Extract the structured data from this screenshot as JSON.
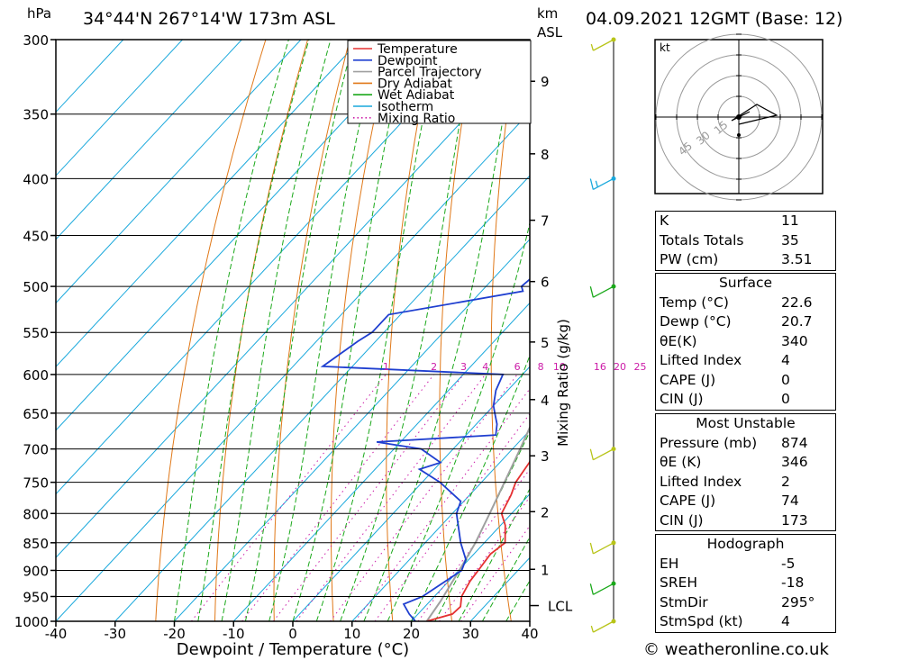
{
  "header": {
    "location": "34°44'N  267°14'W  173m  ASL",
    "datetime": "04.09.2021  12GMT  (Base: 12)",
    "pressure_unit": "hPa",
    "height_unit_km": "km",
    "height_unit_asl": "ASL"
  },
  "chart_data": {
    "type": "line",
    "title": "34°44'N  267°14'W  173m  ASL",
    "xlabel": "Dewpoint / Temperature (°C)",
    "ylabel": "hPa",
    "y2label": "Mixing Ratio (g/kg)",
    "xlim": [
      -40,
      40
    ],
    "ylim": [
      1000,
      300
    ],
    "pressure_ticks": [
      300,
      350,
      400,
      450,
      500,
      550,
      600,
      650,
      700,
      750,
      800,
      850,
      900,
      950,
      1000
    ],
    "temp_ticks": [
      -40,
      -30,
      -20,
      -10,
      0,
      10,
      20,
      30,
      40
    ],
    "height_ticks_km": [
      {
        "label": "9",
        "p": 327
      },
      {
        "label": "8",
        "p": 380
      },
      {
        "label": "7",
        "p": 436
      },
      {
        "label": "6",
        "p": 495
      },
      {
        "label": "5",
        "p": 561
      },
      {
        "label": "4",
        "p": 632
      },
      {
        "label": "3",
        "p": 710
      },
      {
        "label": "2",
        "p": 797
      },
      {
        "label": "1",
        "p": 898
      }
    ],
    "lcl": {
      "label": "LCL",
      "p": 968
    },
    "mixing_ratio_labels": [
      "1",
      "2",
      "3",
      "4",
      "6",
      "8",
      "10",
      "16",
      "20",
      "25"
    ],
    "mixing_ratio_values": [
      1,
      2,
      3,
      4,
      6,
      8,
      10,
      16,
      20,
      25
    ],
    "legend": [
      "Temperature",
      "Dewpoint",
      "Parcel Trajectory",
      "Dry Adiabat",
      "Wet Adiabat",
      "Isotherm",
      "Mixing Ratio"
    ],
    "legend_position": "top",
    "colors": {
      "temperature": "#e53030",
      "dewpoint": "#1f3fd0",
      "parcel": "#a0a0a0",
      "dry_adiabat": "#e07818",
      "wet_adiabat": "#1aa81a",
      "isotherm": "#19a8dc",
      "mixing_ratio": "#cc1ca8"
    },
    "series": [
      {
        "name": "Temperature",
        "points": [
          [
            1000,
            22.6
          ],
          [
            985,
            25.8
          ],
          [
            970,
            26
          ],
          [
            950,
            24.6
          ],
          [
            920,
            23.6
          ],
          [
            900,
            23.3
          ],
          [
            870,
            22.8
          ],
          [
            850,
            23.5
          ],
          [
            820,
            20.8
          ],
          [
            800,
            18.3
          ],
          [
            770,
            17.0
          ],
          [
            750,
            15.8
          ],
          [
            720,
            15.0
          ],
          [
            700,
            14.1
          ],
          [
            680,
            13.2
          ],
          [
            650,
            11.2
          ],
          [
            620,
            9.1
          ],
          [
            600,
            7.0
          ],
          [
            580,
            6.2
          ],
          [
            550,
            4.6
          ],
          [
            520,
            3.0
          ],
          [
            500,
            0.3
          ],
          [
            470,
            -4.5
          ],
          [
            450,
            -7.4
          ],
          [
            420,
            -12.3
          ],
          [
            400,
            -15.1
          ],
          [
            390,
            -14.6
          ],
          [
            370,
            -17.0
          ],
          [
            350,
            -20.9
          ],
          [
            320,
            -26
          ],
          [
            300,
            -29.5
          ]
        ]
      },
      {
        "name": "Dewpoint",
        "points": [
          [
            1000,
            20.7
          ],
          [
            985,
            18.5
          ],
          [
            965,
            16.0
          ],
          [
            950,
            18.0
          ],
          [
            900,
            20.5
          ],
          [
            880,
            19.5
          ],
          [
            850,
            16.0
          ],
          [
            800,
            10.7
          ],
          [
            780,
            9.5
          ],
          [
            750,
            3.0
          ],
          [
            730,
            -2.5
          ],
          [
            720,
            0.0
          ],
          [
            700,
            -5.4
          ],
          [
            690,
            -14.0
          ],
          [
            680,
            5.0
          ],
          [
            665,
            3.5
          ],
          [
            650,
            1.4
          ],
          [
            640,
            0.0
          ],
          [
            620,
            -2.0
          ],
          [
            600,
            -3.3
          ],
          [
            590,
            -35
          ],
          [
            560,
            -33
          ],
          [
            550,
            -32
          ],
          [
            530,
            -32
          ],
          [
            505,
            -13
          ],
          [
            500,
            -14
          ],
          [
            450,
            -12
          ],
          [
            420,
            -11
          ],
          [
            400,
            -10
          ],
          [
            380,
            -29
          ],
          [
            360,
            -16
          ],
          [
            355,
            -7
          ],
          [
            350,
            -25
          ],
          [
            340,
            -26
          ],
          [
            320,
            -23
          ],
          [
            300,
            -22
          ],
          [
            296,
            -20
          ]
        ]
      },
      {
        "name": "Parcel Trajectory",
        "points": [
          [
            1000,
            22.6
          ],
          [
            960,
            21.8
          ],
          [
            900,
            20.1
          ],
          [
            850,
            18.5
          ],
          [
            800,
            16.3
          ],
          [
            750,
            13.9
          ],
          [
            700,
            11.3
          ],
          [
            650,
            8.4
          ],
          [
            600,
            5.0
          ],
          [
            550,
            1.1
          ],
          [
            500,
            -3.5
          ],
          [
            450,
            -8.9
          ],
          [
            400,
            -15.3
          ],
          [
            350,
            -22.9
          ],
          [
            320,
            -27.6
          ]
        ]
      }
    ],
    "hodograph": {
      "unit": "kt",
      "ring_labels": [
        "15",
        "30",
        "45"
      ]
    },
    "wind_barbs": [
      {
        "p": 300,
        "speed_kt": 5,
        "color": "#b8c418"
      },
      {
        "p": 400,
        "speed_kt": 15,
        "color": "#19a8dc"
      },
      {
        "p": 500,
        "speed_kt": 10,
        "color": "#1aa81a"
      },
      {
        "p": 700,
        "speed_kt": 10,
        "color": "#b8c418"
      },
      {
        "p": 850,
        "speed_kt": 10,
        "color": "#b8c418"
      },
      {
        "p": 925,
        "speed_kt": 10,
        "color": "#1aa81a"
      },
      {
        "p": 1000,
        "speed_kt": 5,
        "color": "#b8c418"
      }
    ]
  },
  "indices": {
    "k_label": "K",
    "k_value": "11",
    "tt_label": "Totals Totals",
    "tt_value": "35",
    "pw_label": "PW (cm)",
    "pw_value": "3.51"
  },
  "surface": {
    "title": "Surface",
    "temp_label": "Temp (°C)",
    "temp_value": "22.6",
    "dewp_label": "Dewp (°C)",
    "dewp_value": "20.7",
    "theta_label": "θE(K)",
    "theta_value": "340",
    "li_label": "Lifted Index",
    "li_value": "4",
    "cape_label": "CAPE (J)",
    "cape_value": "0",
    "cin_label": "CIN (J)",
    "cin_value": "0"
  },
  "most_unstable": {
    "title": "Most Unstable",
    "pressure_label": "Pressure (mb)",
    "pressure_value": "874",
    "theta_label": "θE (K)",
    "theta_value": "346",
    "li_label": "Lifted Index",
    "li_value": "2",
    "cape_label": "CAPE (J)",
    "cape_value": "74",
    "cin_label": "CIN (J)",
    "cin_value": "173"
  },
  "hodograph_table": {
    "title": "Hodograph",
    "eh_label": "EH",
    "eh_value": "-5",
    "sreh_label": "SREH",
    "sreh_value": "-18",
    "stmdir_label": "StmDir",
    "stmdir_value": "295°",
    "stmspd_label": "StmSpd (kt)",
    "stmspd_value": "4"
  },
  "credit": "© weatheronline.co.uk"
}
